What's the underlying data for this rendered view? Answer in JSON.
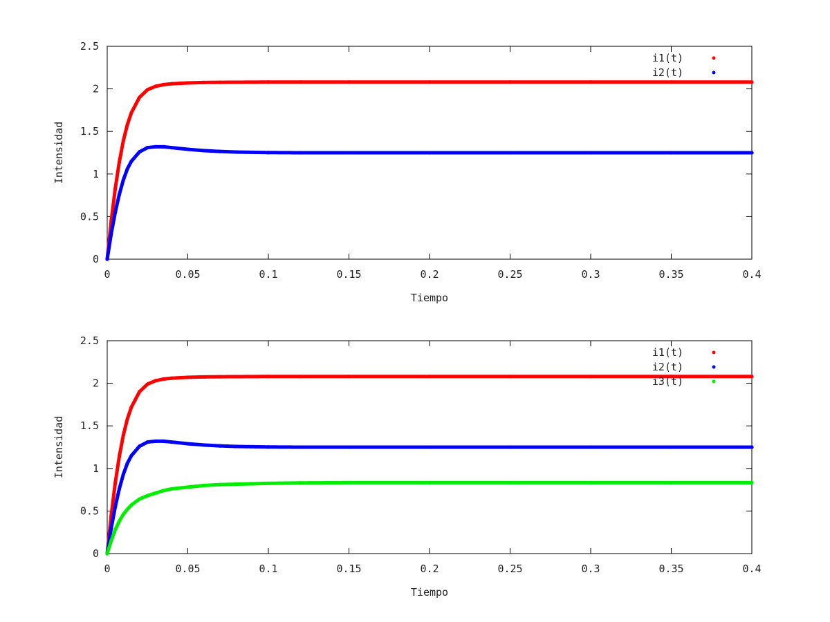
{
  "chart_data": [
    {
      "type": "scatter",
      "title": "",
      "xlabel": "Tiempo",
      "ylabel": "Intensidad",
      "xlim": [
        0,
        0.4
      ],
      "ylim": [
        0,
        2.5
      ],
      "x_ticks": [
        "0",
        "0.05",
        "0.1",
        "0.15",
        "0.2",
        "0.25",
        "0.3",
        "0.35",
        "0.4"
      ],
      "y_ticks": [
        "0",
        "0.5",
        "1",
        "1.5",
        "2",
        "2.5"
      ],
      "grid": false,
      "legend_position": "top-right",
      "series": [
        {
          "name": "i1(t)",
          "color": "#ff0000",
          "x": [
            0,
            0.0025,
            0.005,
            0.0075,
            0.01,
            0.0125,
            0.015,
            0.02,
            0.025,
            0.03,
            0.035,
            0.04,
            0.05,
            0.06,
            0.07,
            0.08,
            0.1,
            0.12,
            0.15,
            0.2,
            0.25,
            0.3,
            0.35,
            0.4
          ],
          "y": [
            0,
            0.45,
            0.83,
            1.14,
            1.39,
            1.58,
            1.72,
            1.9,
            1.99,
            2.03,
            2.05,
            2.06,
            2.07,
            2.075,
            2.077,
            2.078,
            2.08,
            2.08,
            2.08,
            2.08,
            2.08,
            2.08,
            2.08,
            2.08
          ]
        },
        {
          "name": "i2(t)",
          "color": "#0000ff",
          "x": [
            0,
            0.0025,
            0.005,
            0.0075,
            0.01,
            0.0125,
            0.015,
            0.02,
            0.025,
            0.03,
            0.035,
            0.04,
            0.05,
            0.06,
            0.07,
            0.08,
            0.1,
            0.12,
            0.15,
            0.2,
            0.25,
            0.3,
            0.35,
            0.4
          ],
          "y": [
            0,
            0.3,
            0.55,
            0.76,
            0.93,
            1.06,
            1.15,
            1.26,
            1.31,
            1.32,
            1.32,
            1.31,
            1.29,
            1.275,
            1.265,
            1.258,
            1.252,
            1.25,
            1.25,
            1.25,
            1.25,
            1.25,
            1.25,
            1.25
          ]
        }
      ]
    },
    {
      "type": "scatter",
      "title": "",
      "xlabel": "Tiempo",
      "ylabel": "Intensidad",
      "xlim": [
        0,
        0.4
      ],
      "ylim": [
        0,
        2.5
      ],
      "x_ticks": [
        "0",
        "0.05",
        "0.1",
        "0.15",
        "0.2",
        "0.25",
        "0.3",
        "0.35",
        "0.4"
      ],
      "y_ticks": [
        "0",
        "0.5",
        "1",
        "1.5",
        "2",
        "2.5"
      ],
      "grid": false,
      "legend_position": "top-right",
      "series": [
        {
          "name": "i1(t)",
          "color": "#ff0000",
          "x": [
            0,
            0.0025,
            0.005,
            0.0075,
            0.01,
            0.0125,
            0.015,
            0.02,
            0.025,
            0.03,
            0.035,
            0.04,
            0.05,
            0.06,
            0.07,
            0.08,
            0.1,
            0.12,
            0.15,
            0.2,
            0.25,
            0.3,
            0.35,
            0.4
          ],
          "y": [
            0,
            0.45,
            0.83,
            1.14,
            1.39,
            1.58,
            1.72,
            1.9,
            1.99,
            2.03,
            2.05,
            2.06,
            2.07,
            2.075,
            2.077,
            2.078,
            2.08,
            2.08,
            2.08,
            2.08,
            2.08,
            2.08,
            2.08,
            2.08
          ]
        },
        {
          "name": "i2(t)",
          "color": "#0000ff",
          "x": [
            0,
            0.0025,
            0.005,
            0.0075,
            0.01,
            0.0125,
            0.015,
            0.02,
            0.025,
            0.03,
            0.035,
            0.04,
            0.05,
            0.06,
            0.07,
            0.08,
            0.1,
            0.12,
            0.15,
            0.2,
            0.25,
            0.3,
            0.35,
            0.4
          ],
          "y": [
            0,
            0.3,
            0.55,
            0.76,
            0.93,
            1.06,
            1.15,
            1.26,
            1.31,
            1.32,
            1.32,
            1.31,
            1.29,
            1.275,
            1.265,
            1.258,
            1.252,
            1.25,
            1.25,
            1.25,
            1.25,
            1.25,
            1.25,
            1.25
          ]
        },
        {
          "name": "i3(t)",
          "color": "#00ee00",
          "x": [
            0,
            0.0025,
            0.005,
            0.0075,
            0.01,
            0.0125,
            0.015,
            0.02,
            0.025,
            0.03,
            0.035,
            0.04,
            0.05,
            0.06,
            0.07,
            0.08,
            0.1,
            0.12,
            0.15,
            0.2,
            0.25,
            0.3,
            0.35,
            0.4
          ],
          "y": [
            0,
            0.15,
            0.28,
            0.38,
            0.46,
            0.52,
            0.57,
            0.64,
            0.68,
            0.71,
            0.74,
            0.76,
            0.78,
            0.8,
            0.81,
            0.815,
            0.825,
            0.83,
            0.833,
            0.833,
            0.833,
            0.833,
            0.833,
            0.833
          ]
        }
      ]
    }
  ]
}
